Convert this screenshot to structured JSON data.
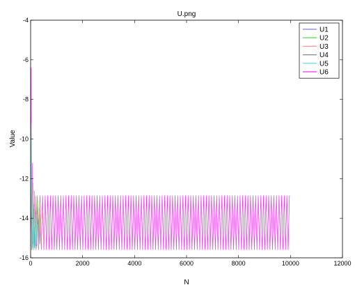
{
  "chart_data": {
    "type": "line",
    "title": "U.png",
    "xlabel": "N",
    "ylabel": "Value",
    "xlim": [
      0,
      12000
    ],
    "ylim": [
      -16,
      -4
    ],
    "xticks": [
      0,
      2000,
      4000,
      6000,
      8000,
      10000,
      12000
    ],
    "yticks": [
      -4,
      -6,
      -8,
      -10,
      -12,
      -14,
      -16
    ],
    "grid": false,
    "legend_position": "top-right",
    "series": [
      {
        "name": "U1",
        "color": "#7f7fff",
        "x": [
          0,
          40,
          80,
          120,
          160,
          200,
          240,
          280,
          320,
          360,
          400,
          440
        ],
        "y": [
          -15.2,
          -11.6,
          -15.4,
          -13.3,
          -15.3,
          -13.6,
          -15.4,
          -13.4,
          -15.3,
          -13.8,
          -15.3,
          -14.2
        ]
      },
      {
        "name": "U2",
        "color": "#66dd66",
        "x": [
          0,
          30,
          60,
          90,
          120,
          150,
          180,
          210,
          240,
          270,
          300,
          330,
          360,
          390
        ],
        "y": [
          -13.6,
          -9.8,
          -15.6,
          -12.2,
          -15.5,
          -12.6,
          -15.4,
          -12.9,
          -15.5,
          -13.1,
          -15.4,
          -13.5,
          -15.3,
          -14.0
        ]
      },
      {
        "name": "U3",
        "color": "#ff9999",
        "x": [
          0,
          50,
          100,
          150,
          200,
          250,
          300,
          350,
          400,
          450,
          500
        ],
        "y": [
          -15.0,
          -12.4,
          -15.3,
          -12.6,
          -15.5,
          -13.0,
          -15.4,
          -13.2,
          -15.3,
          -13.6,
          -15.2
        ]
      },
      {
        "name": "U4",
        "color": "#888888",
        "x": [
          0,
          40,
          80,
          120,
          160,
          200,
          240,
          280,
          320
        ],
        "y": [
          -14.6,
          -12.8,
          -15.4,
          -13.5,
          -15.5,
          -13.7,
          -15.4,
          -14.0,
          -15.2
        ]
      },
      {
        "name": "U5",
        "color": "#77dddd",
        "x": [
          0,
          30,
          60,
          90,
          120,
          150,
          180,
          210,
          240,
          270
        ],
        "y": [
          -15.2,
          -9.2,
          -15.5,
          -12.8,
          -15.6,
          -13.4,
          -15.4,
          -13.8,
          -15.3,
          -14.3
        ]
      },
      {
        "name": "U6",
        "color": "#ee33ee",
        "osc_start": 0,
        "osc_end": 10000,
        "osc_period": 100,
        "osc_high": -12.85,
        "osc_low": -15.6,
        "transient": {
          "x": [
            0,
            20,
            40,
            60,
            80,
            100,
            130,
            160
          ],
          "y": [
            -15.4,
            -6.4,
            -15.6,
            -11.2,
            -15.5,
            -12.6,
            -15.6,
            -12.85
          ]
        }
      }
    ]
  }
}
